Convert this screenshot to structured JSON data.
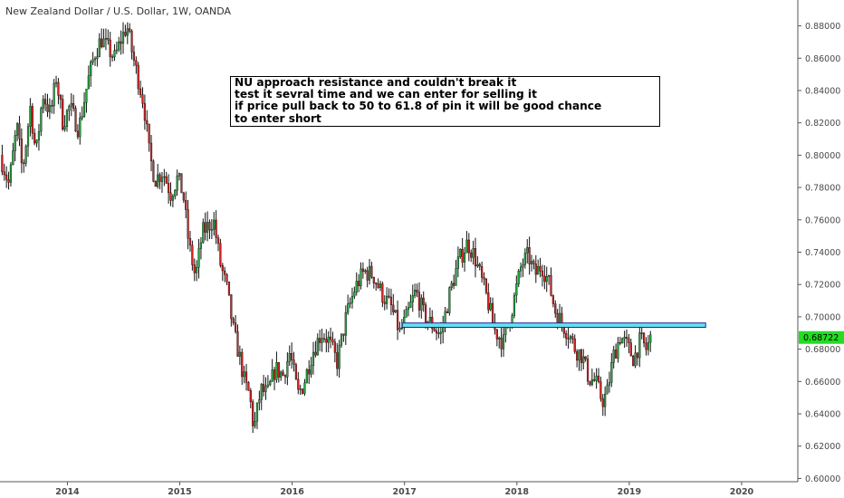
{
  "chart_data": {
    "type": "candlestick",
    "title": "New Zealand Dollar / U.S. Dollar, 1W, OANDA",
    "x_tick_labels": [
      "2014",
      "2015",
      "2016",
      "2017",
      "2018",
      "2019",
      "2020"
    ],
    "x_tick_years": [
      2014,
      2015,
      2016,
      2017,
      2018,
      2019,
      2020
    ],
    "y_tick_labels": [
      "0.88000",
      "0.86000",
      "0.84000",
      "0.82000",
      "0.80000",
      "0.78000",
      "0.76000",
      "0.74000",
      "0.72000",
      "0.70000",
      "0.68000",
      "0.66000",
      "0.64000",
      "0.62000",
      "0.60000"
    ],
    "y_tick_values": [
      0.88,
      0.86,
      0.84,
      0.82,
      0.8,
      0.78,
      0.76,
      0.74,
      0.72,
      0.7,
      0.68,
      0.66,
      0.64,
      0.62,
      0.6
    ],
    "x_range": [
      2013.4,
      2020.5
    ],
    "y_range": [
      0.598,
      0.896
    ],
    "current_price": "0.68722",
    "current_price_value": 0.68722,
    "resistance_zone": {
      "x_start": 2016.98,
      "x_end": 2019.68,
      "y_low": 0.6935,
      "y_high": 0.6962,
      "color": "#66e0ee"
    },
    "annotation": [
      "NU approach resistance and couldn't break it",
      "test it sevral time and we can enter for selling it",
      "if price pull back to 50 to 61.8 of pin it will be good chance",
      "to enter short"
    ],
    "price_path": [
      [
        2013.4,
        0.8
      ],
      [
        2013.48,
        0.782
      ],
      [
        2013.55,
        0.818
      ],
      [
        2013.6,
        0.79
      ],
      [
        2013.67,
        0.83
      ],
      [
        2013.72,
        0.8
      ],
      [
        2013.78,
        0.838
      ],
      [
        2013.85,
        0.825
      ],
      [
        2013.9,
        0.848
      ],
      [
        2013.96,
        0.82
      ],
      [
        2014.02,
        0.83
      ],
      [
        2014.1,
        0.816
      ],
      [
        2014.18,
        0.845
      ],
      [
        2014.24,
        0.862
      ],
      [
        2014.3,
        0.872
      ],
      [
        2014.36,
        0.866
      ],
      [
        2014.42,
        0.86
      ],
      [
        2014.48,
        0.872
      ],
      [
        2014.53,
        0.88
      ],
      [
        2014.58,
        0.862
      ],
      [
        2014.62,
        0.85
      ],
      [
        2014.68,
        0.832
      ],
      [
        2014.73,
        0.8
      ],
      [
        2014.78,
        0.785
      ],
      [
        2014.85,
        0.79
      ],
      [
        2014.92,
        0.776
      ],
      [
        2014.98,
        0.786
      ],
      [
        2015.03,
        0.776
      ],
      [
        2015.08,
        0.745
      ],
      [
        2015.14,
        0.724
      ],
      [
        2015.2,
        0.752
      ],
      [
        2015.25,
        0.756
      ],
      [
        2015.3,
        0.76
      ],
      [
        2015.36,
        0.733
      ],
      [
        2015.42,
        0.717
      ],
      [
        2015.48,
        0.69
      ],
      [
        2015.53,
        0.676
      ],
      [
        2015.58,
        0.658
      ],
      [
        2015.62,
        0.652
      ],
      [
        2015.66,
        0.63
      ],
      [
        2015.72,
        0.655
      ],
      [
        2015.78,
        0.652
      ],
      [
        2015.85,
        0.668
      ],
      [
        2015.92,
        0.664
      ],
      [
        2015.98,
        0.678
      ],
      [
        2016.05,
        0.652
      ],
      [
        2016.1,
        0.658
      ],
      [
        2016.18,
        0.678
      ],
      [
        2016.26,
        0.69
      ],
      [
        2016.32,
        0.686
      ],
      [
        2016.4,
        0.672
      ],
      [
        2016.48,
        0.7
      ],
      [
        2016.56,
        0.718
      ],
      [
        2016.64,
        0.728
      ],
      [
        2016.72,
        0.726
      ],
      [
        2016.8,
        0.714
      ],
      [
        2016.88,
        0.706
      ],
      [
        2016.96,
        0.69
      ],
      [
        2017.02,
        0.7
      ],
      [
        2017.1,
        0.716
      ],
      [
        2017.18,
        0.7
      ],
      [
        2017.26,
        0.694
      ],
      [
        2017.32,
        0.688
      ],
      [
        2017.4,
        0.714
      ],
      [
        2017.48,
        0.734
      ],
      [
        2017.56,
        0.746
      ],
      [
        2017.62,
        0.738
      ],
      [
        2017.68,
        0.724
      ],
      [
        2017.74,
        0.71
      ],
      [
        2017.8,
        0.692
      ],
      [
        2017.88,
        0.684
      ],
      [
        2017.96,
        0.706
      ],
      [
        2018.04,
        0.732
      ],
      [
        2018.1,
        0.738
      ],
      [
        2018.16,
        0.726
      ],
      [
        2018.22,
        0.732
      ],
      [
        2018.28,
        0.722
      ],
      [
        2018.34,
        0.704
      ],
      [
        2018.4,
        0.696
      ],
      [
        2018.46,
        0.69
      ],
      [
        2018.52,
        0.68
      ],
      [
        2018.58,
        0.676
      ],
      [
        2018.64,
        0.662
      ],
      [
        2018.7,
        0.66
      ],
      [
        2018.76,
        0.648
      ],
      [
        2018.8,
        0.652
      ],
      [
        2018.86,
        0.676
      ],
      [
        2018.92,
        0.688
      ],
      [
        2018.98,
        0.682
      ],
      [
        2019.04,
        0.674
      ],
      [
        2019.1,
        0.686
      ],
      [
        2019.15,
        0.68
      ],
      [
        2019.2,
        0.688
      ]
    ]
  }
}
